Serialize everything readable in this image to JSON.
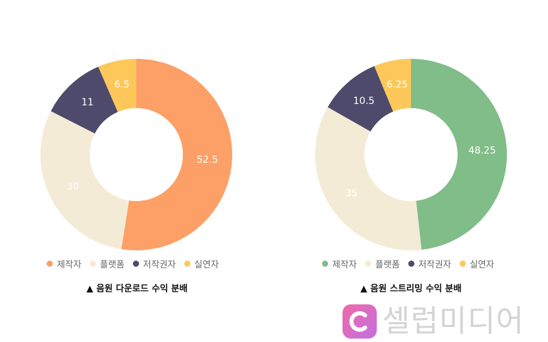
{
  "chart_data": [
    {
      "type": "pie",
      "donut": true,
      "title": "▲ 음원 다운로드 수익 분배",
      "categories": [
        "제작자",
        "플랫폼",
        "저작권자",
        "실연자"
      ],
      "values": [
        52.5,
        30,
        11,
        6.5
      ],
      "labels": [
        "52.5",
        "30",
        "11",
        "6.5"
      ],
      "colors": [
        "#fca067",
        "#f4ebd6",
        "#4e4a6b",
        "#fdc859"
      ],
      "label_colors": [
        "#ffffff",
        "#ffffff",
        "#ffffff",
        "#ffffff"
      ],
      "legend_position": "bottom"
    },
    {
      "type": "pie",
      "donut": true,
      "title": "▲ 음원 스트리밍 수익 분배",
      "categories": [
        "제작자",
        "플랫폼",
        "저작권자",
        "실연자"
      ],
      "values": [
        48.25,
        35,
        10.5,
        6.25
      ],
      "labels": [
        "48.25",
        "35",
        "10.5",
        "6.25"
      ],
      "colors": [
        "#80bd88",
        "#f4ebd6",
        "#4e4a6b",
        "#fdc859"
      ],
      "label_colors": [
        "#ffffff",
        "#ffffff",
        "#ffffff",
        "#ffffff"
      ],
      "legend_position": "bottom"
    }
  ],
  "watermark": {
    "logo_icon": "c-logo-icon",
    "text": "셀럽미디어"
  }
}
